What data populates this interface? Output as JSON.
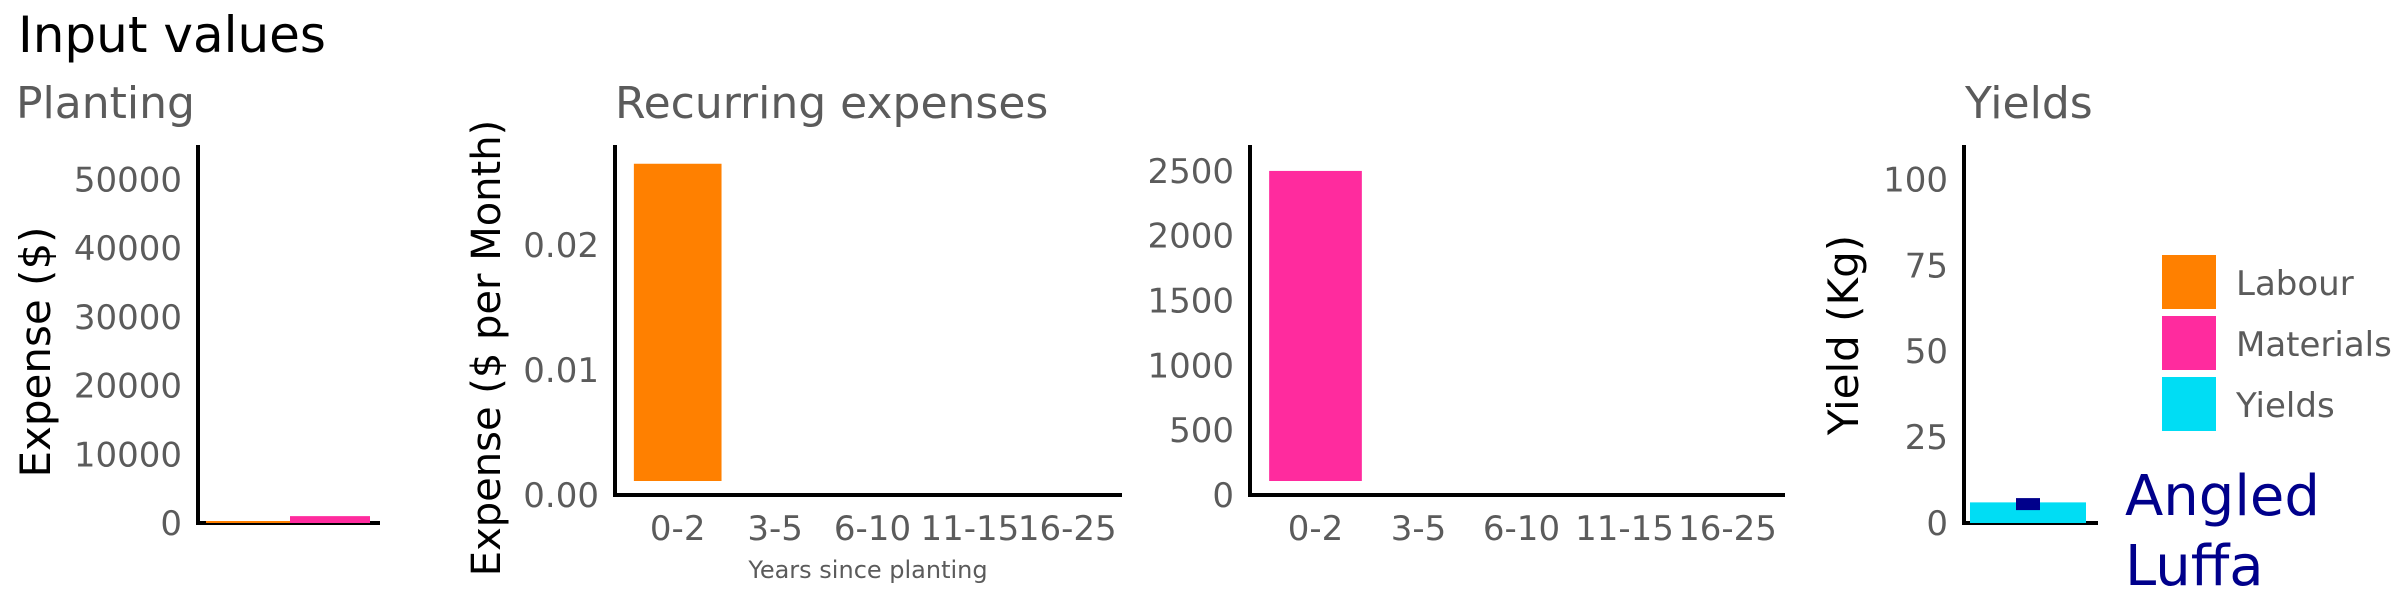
{
  "title": "Input values",
  "colors": {
    "labour": "#FF8000",
    "materials": "#FF2B9E",
    "yields": "#00DDF4",
    "yield_marker": "#00008B",
    "text": "#5b5b5b",
    "axis": "#000000",
    "crop_label": "#00008B"
  },
  "chart_data": [
    {
      "id": "planting",
      "type": "bar",
      "title": "Planting",
      "xlabel": "",
      "ylabel": "Expense ($)",
      "ylim": [
        0,
        55000
      ],
      "yticks": [
        0,
        10000,
        20000,
        30000,
        40000,
        50000
      ],
      "series": [
        {
          "name": "Labour",
          "values": [
            100
          ]
        },
        {
          "name": "Materials",
          "values": [
            1000
          ]
        }
      ]
    },
    {
      "id": "recurring-labour",
      "type": "bar",
      "title": "Recurring expenses",
      "xlabel": "Years since planting",
      "ylabel": "Expense ($ per Month)",
      "categories": [
        "0-2",
        "3-5",
        "6-10",
        "11-15",
        "16-25"
      ],
      "ylim": [
        0,
        0.028
      ],
      "yticks": [
        "0.00",
        "0.01",
        "0.02"
      ],
      "series": [
        {
          "name": "Labour",
          "values": [
            0.0265,
            0,
            0,
            0,
            0
          ]
        }
      ]
    },
    {
      "id": "recurring-materials",
      "type": "bar",
      "title": "",
      "xlabel": "",
      "ylabel": "",
      "categories": [
        "0-2",
        "3-5",
        "6-10",
        "11-15",
        "16-25"
      ],
      "ylim": [
        0,
        2700
      ],
      "yticks": [
        0,
        500,
        1000,
        1500,
        2000,
        2500
      ],
      "series": [
        {
          "name": "Materials",
          "values": [
            2500,
            0,
            0,
            0,
            0
          ]
        }
      ]
    },
    {
      "id": "yields",
      "type": "bar",
      "title": "Yields",
      "xlabel": "",
      "ylabel": "Yield (Kg)",
      "ylim": [
        0,
        110
      ],
      "yticks": [
        0,
        25,
        50,
        75,
        100
      ],
      "series": [
        {
          "name": "Yields",
          "values": [
            6
          ]
        },
        {
          "name": "",
          "values": [
            5.5
          ]
        }
      ],
      "label": "Angled Luffa"
    }
  ],
  "legend": [
    "Labour",
    "Materials",
    "Yields"
  ]
}
